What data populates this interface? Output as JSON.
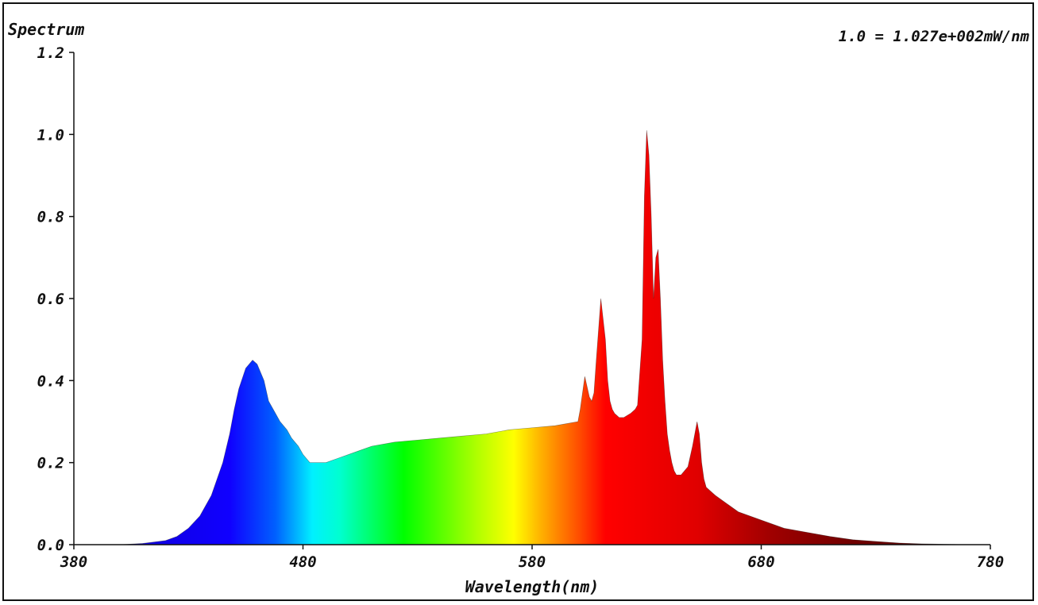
{
  "chart_data": {
    "type": "area",
    "title": "Spectrum",
    "scale_note": "1.0 = 1.027e+002mW/nm",
    "xlabel": "Wavelength(nm)",
    "ylabel": "",
    "xlim": [
      380,
      780
    ],
    "ylim": [
      0,
      1.2
    ],
    "x_ticks": [
      "380",
      "480",
      "580",
      "680",
      "780"
    ],
    "y_ticks": [
      "0.0",
      "0.2",
      "0.4",
      "0.6",
      "0.8",
      "1.0",
      "1.2"
    ],
    "grid": false,
    "series": [
      {
        "x": [
          380,
          400,
          410,
          420,
          425,
          430,
          435,
          440,
          445,
          448,
          450,
          452,
          455,
          458,
          460,
          463,
          465,
          468,
          470,
          473,
          475,
          478,
          480,
          483,
          485,
          490,
          495,
          500,
          505,
          510,
          520,
          530,
          540,
          550,
          560,
          570,
          580,
          590,
          595,
          600,
          601,
          603,
          605,
          606,
          607,
          608,
          610,
          612,
          613,
          614,
          615,
          616,
          617,
          618,
          620,
          623,
          625,
          626,
          628,
          629,
          630,
          631,
          632,
          633,
          634,
          635,
          636,
          637,
          638,
          639,
          640,
          641,
          642,
          643,
          645,
          648,
          650,
          652,
          653,
          654,
          655,
          656,
          658,
          660,
          665,
          670,
          680,
          690,
          700,
          710,
          720,
          730,
          740,
          750,
          760,
          770,
          780
        ],
        "values": [
          0,
          0,
          0.003,
          0.01,
          0.02,
          0.04,
          0.07,
          0.12,
          0.2,
          0.27,
          0.33,
          0.38,
          0.43,
          0.45,
          0.44,
          0.4,
          0.35,
          0.32,
          0.3,
          0.28,
          0.26,
          0.24,
          0.22,
          0.2,
          0.2,
          0.2,
          0.21,
          0.22,
          0.23,
          0.24,
          0.25,
          0.255,
          0.26,
          0.265,
          0.27,
          0.28,
          0.285,
          0.29,
          0.295,
          0.3,
          0.33,
          0.41,
          0.36,
          0.35,
          0.37,
          0.45,
          0.6,
          0.5,
          0.4,
          0.35,
          0.33,
          0.32,
          0.315,
          0.31,
          0.31,
          0.32,
          0.33,
          0.34,
          0.5,
          0.85,
          1.01,
          0.95,
          0.8,
          0.6,
          0.7,
          0.72,
          0.6,
          0.45,
          0.35,
          0.27,
          0.23,
          0.2,
          0.18,
          0.17,
          0.17,
          0.19,
          0.24,
          0.3,
          0.27,
          0.2,
          0.16,
          0.14,
          0.13,
          0.12,
          0.1,
          0.08,
          0.06,
          0.04,
          0.03,
          0.02,
          0.012,
          0.008,
          0.004,
          0.002,
          0.001,
          0,
          0
        ]
      }
    ]
  }
}
